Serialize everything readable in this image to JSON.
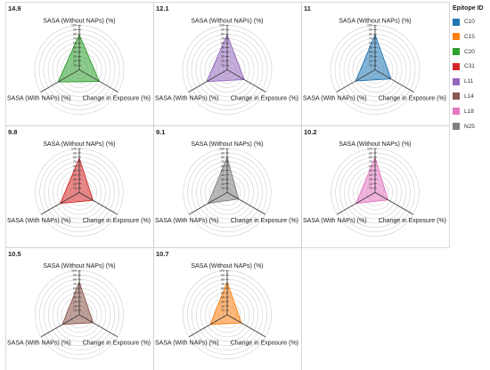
{
  "chart_data": {
    "type": "radar",
    "axes": [
      "SASA (Without NAPs) (%)",
      "Change in Exposure (%)",
      "SASA (With NAPs) (%)"
    ],
    "radial_ticks": [
      10,
      20,
      30,
      40,
      50,
      60,
      70,
      80,
      90,
      100
    ],
    "legend_title": "Epitope ID",
    "legend": [
      {
        "label": "C10",
        "color": "#1f77b4"
      },
      {
        "label": "C15",
        "color": "#ff7f0e"
      },
      {
        "label": "C20",
        "color": "#2ca02c"
      },
      {
        "label": "C31",
        "color": "#d62728"
      },
      {
        "label": "L11",
        "color": "#9467bd"
      },
      {
        "label": "L14",
        "color": "#8c564b"
      },
      {
        "label": "L18",
        "color": "#e377c2"
      },
      {
        "label": "N25",
        "color": "#7f7f7f"
      }
    ],
    "panels": [
      {
        "title": "14.9",
        "epitope": "C20",
        "color": "#2ca02c",
        "values": [
          79,
          52,
          55
        ]
      },
      {
        "title": "12.1",
        "epitope": "L11",
        "color": "#9467bd",
        "values": [
          79,
          44,
          53
        ]
      },
      {
        "title": "11",
        "epitope": "C10",
        "color": "#1f77b4",
        "values": [
          79,
          41,
          50
        ]
      },
      {
        "title": "9.8",
        "epitope": "C31",
        "color": "#d62728",
        "values": [
          78,
          36,
          50
        ]
      },
      {
        "title": "9.1",
        "epitope": "N25",
        "color": "#7f7f7f",
        "values": [
          80,
          30,
          50
        ]
      },
      {
        "title": "10.2",
        "epitope": "L18",
        "color": "#e377c2",
        "values": [
          80,
          34,
          50
        ]
      },
      {
        "title": "10.5",
        "epitope": "L14",
        "color": "#8c564b",
        "values": [
          74,
          36,
          44
        ]
      },
      {
        "title": "10.7",
        "epitope": "C15",
        "color": "#ff7f0e",
        "values": [
          74,
          37,
          44
        ]
      }
    ]
  }
}
